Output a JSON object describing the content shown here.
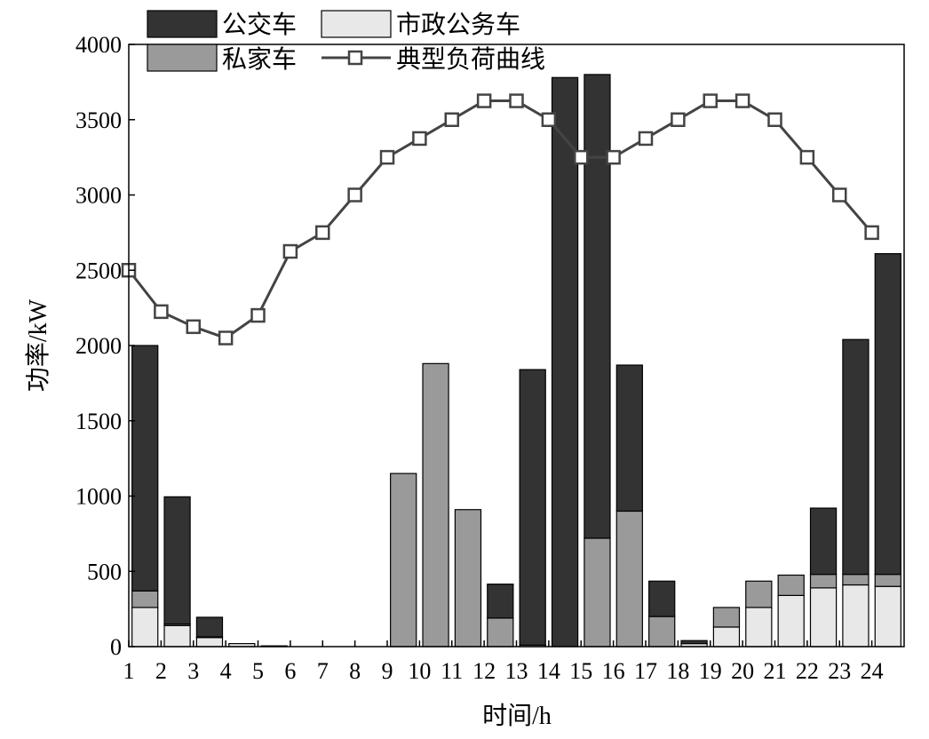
{
  "chart_data": {
    "type": "bar",
    "stacked": true,
    "xlabel": "时间/h",
    "ylabel": "功率/kW",
    "ylim": [
      0,
      4000
    ],
    "yticks": [
      0,
      500,
      1000,
      1500,
      2000,
      2500,
      3000,
      3500,
      4000
    ],
    "categories": [
      "1",
      "2",
      "3",
      "4",
      "5",
      "6",
      "7",
      "8",
      "9",
      "10",
      "11",
      "12",
      "13",
      "14",
      "15",
      "16",
      "17",
      "18",
      "19",
      "20",
      "21",
      "22",
      "23",
      "24"
    ],
    "series": [
      {
        "name": "市政公务车",
        "kind": "bar",
        "color": "#e8e8e8",
        "values": [
          260,
          140,
          60,
          20,
          5,
          0,
          0,
          0,
          0,
          0,
          0,
          0,
          10,
          0,
          0,
          0,
          0,
          20,
          130,
          260,
          340,
          390,
          410,
          400
        ]
      },
      {
        "name": "私家车",
        "kind": "bar",
        "color": "#9a9a9a",
        "values": [
          110,
          10,
          5,
          0,
          0,
          0,
          0,
          0,
          1150,
          1880,
          910,
          190,
          0,
          0,
          720,
          900,
          200,
          0,
          130,
          175,
          135,
          90,
          70,
          80
        ]
      },
      {
        "name": "公交车",
        "kind": "bar",
        "color": "#333333",
        "values": [
          1630,
          845,
          130,
          0,
          0,
          0,
          0,
          0,
          0,
          0,
          0,
          225,
          1830,
          3780,
          3080,
          970,
          235,
          20,
          0,
          0,
          0,
          440,
          1560,
          2130
        ]
      },
      {
        "name": "典型负荷曲线",
        "kind": "line",
        "marker": "square",
        "color": "#444444",
        "values": [
          2500,
          2225,
          2125,
          2050,
          2200,
          2625,
          2750,
          3000,
          3250,
          3375,
          3500,
          3625,
          3625,
          3500,
          3250,
          3250,
          3375,
          3500,
          3625,
          3625,
          3500,
          3250,
          3000,
          2750
        ]
      }
    ],
    "legend": {
      "placement": "top-left",
      "entries": [
        "公交车",
        "市政公务车",
        "私家车",
        "典型负荷曲线"
      ]
    },
    "grid": false
  }
}
